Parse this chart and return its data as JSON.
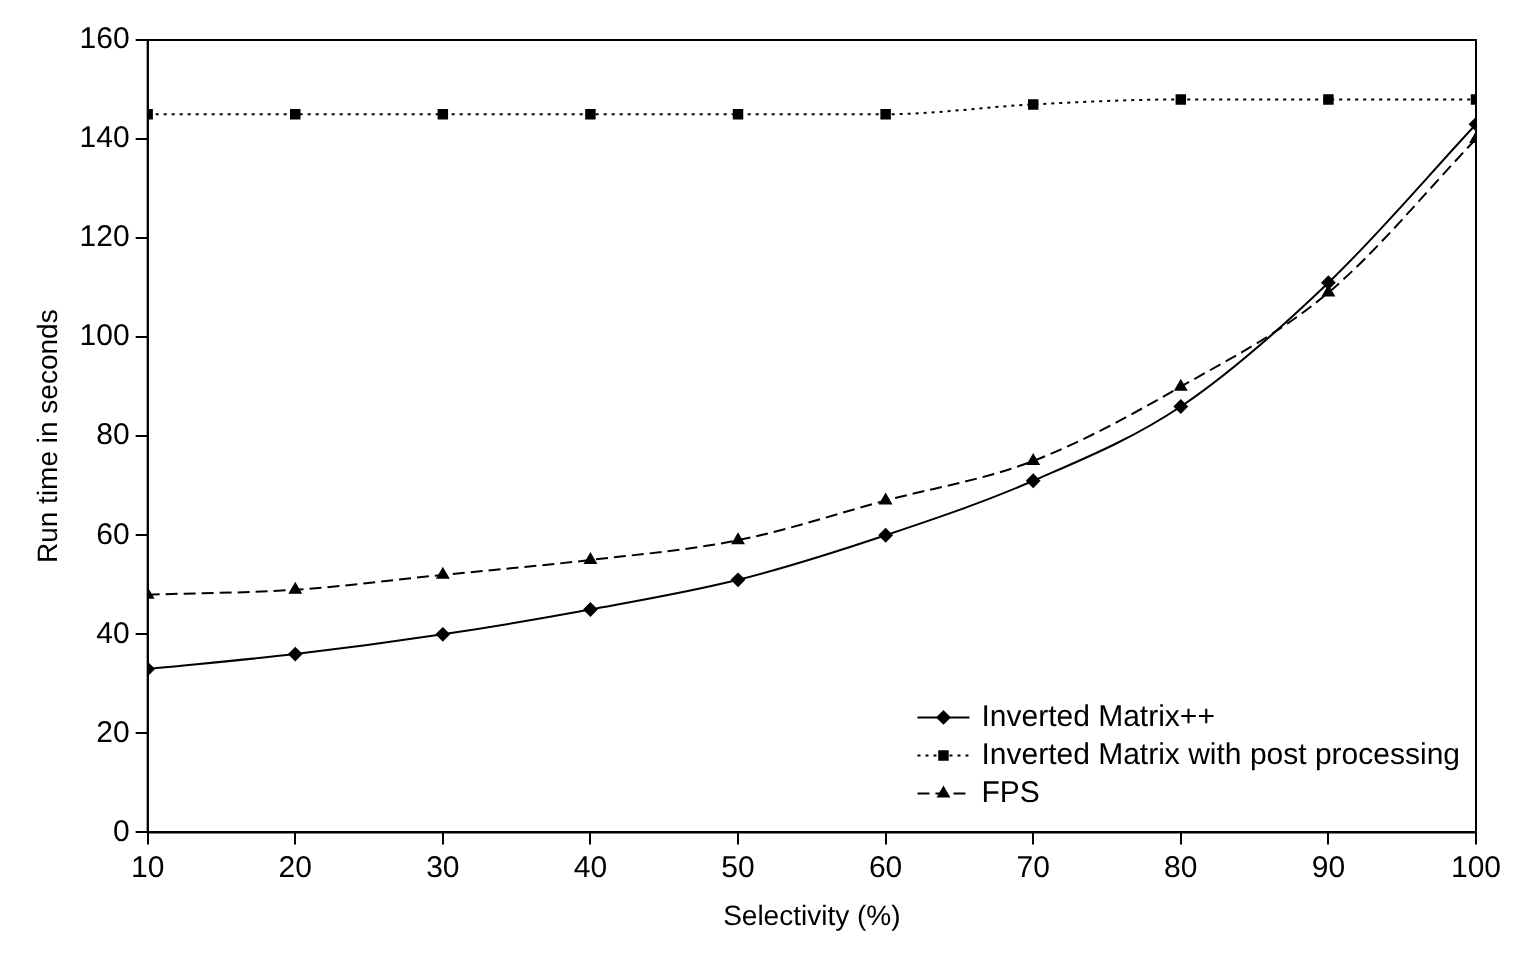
{
  "chart_data": {
    "type": "line",
    "xlabel": "Selectivity (%)",
    "ylabel": "Run time in seconds",
    "x": [
      10,
      20,
      30,
      40,
      50,
      60,
      70,
      80,
      90,
      100
    ],
    "xlim": [
      10,
      100
    ],
    "xticks": [
      10,
      20,
      30,
      40,
      50,
      60,
      70,
      80,
      90,
      100
    ],
    "ylim": [
      0,
      160
    ],
    "yticks": [
      0,
      20,
      40,
      60,
      80,
      100,
      120,
      140,
      160
    ],
    "grid": false,
    "legend": "bottom right",
    "series": [
      {
        "name": "Inverted Matrix++",
        "color": "#000000",
        "marker": "diamond",
        "line_style": "solid",
        "values": [
          33,
          36,
          40,
          45,
          51,
          60,
          71,
          86,
          111,
          143
        ]
      },
      {
        "name": "Inverted Matrix with post processing",
        "color": "#000000",
        "marker": "square",
        "line_style": "dotted",
        "values": [
          145,
          145,
          145,
          145,
          145,
          145,
          147,
          148,
          148,
          148
        ]
      },
      {
        "name": "FPS",
        "color": "#000000",
        "marker": "triangle",
        "line_style": "dashed",
        "values": [
          48,
          49,
          52,
          55,
          59,
          67,
          75,
          90,
          109,
          140
        ]
      }
    ]
  }
}
